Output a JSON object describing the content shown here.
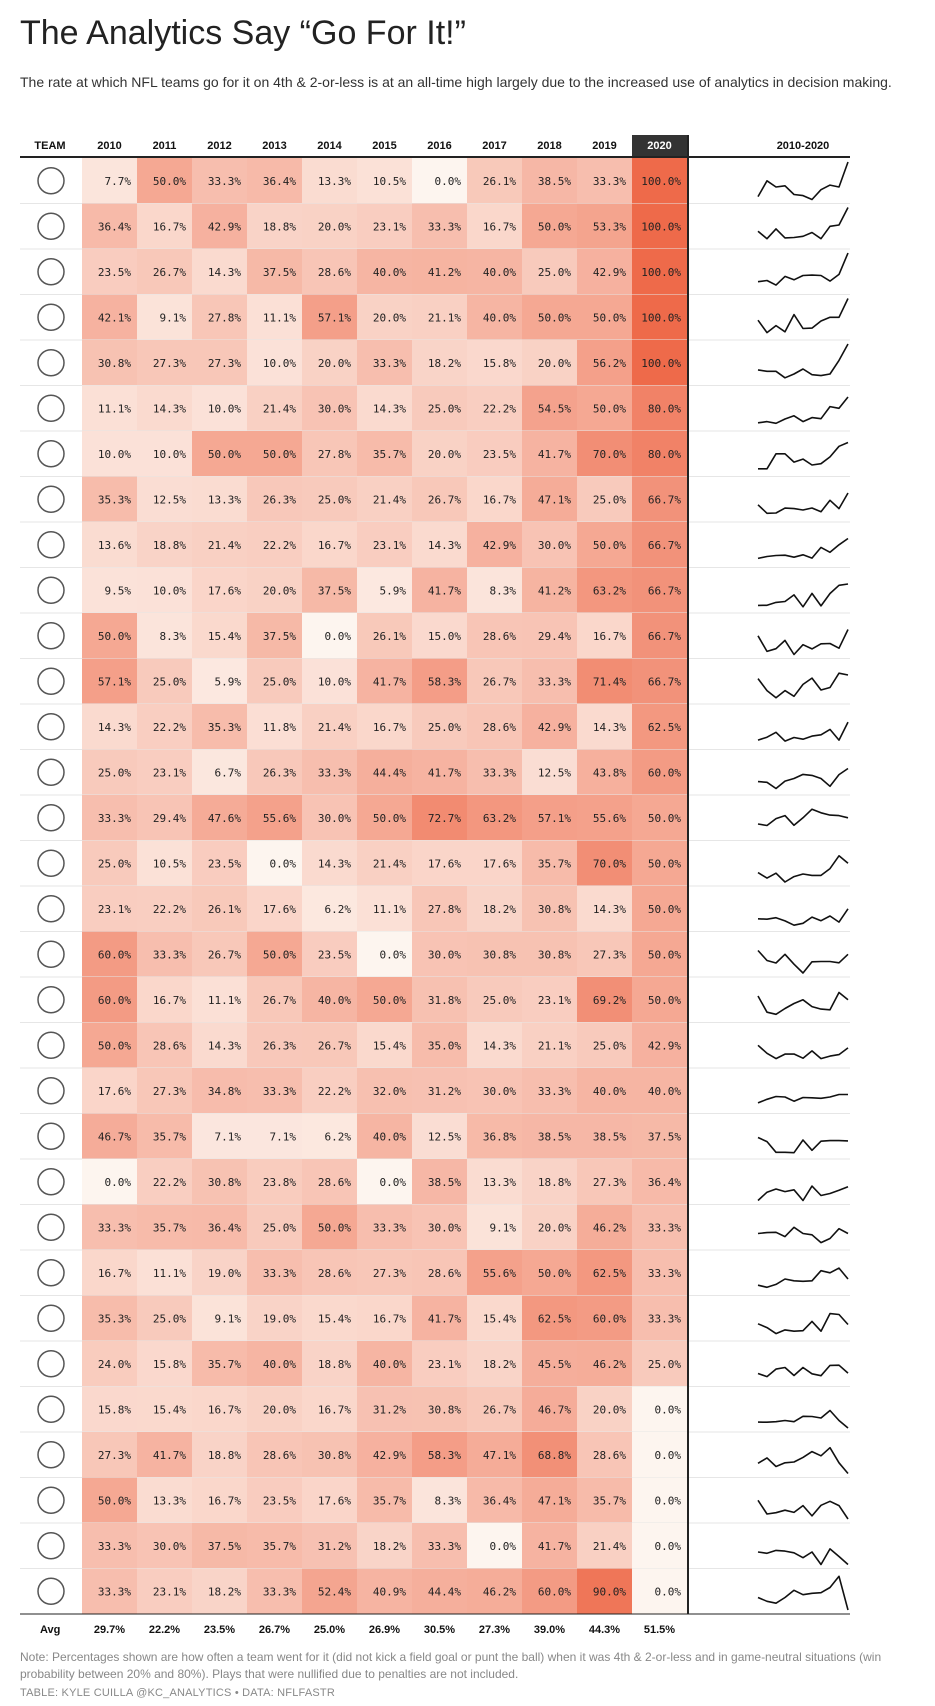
{
  "title": "The Analytics Say “Go For It!”",
  "subtitle": "The rate at which NFL teams go for it on 4th & 2-or-less is at an all-time high largely due to the increased use of analytics in decision making.",
  "note": "Note: Percentages shown are how often a team went for it (did not kick a field goal or punt the ball) when it was 4th & 2-or-less and in game-neutral situations (win probability between 20% and 80%). Plays that were nullified due to penalties are not included.",
  "credit": "TABLE: KYLE CUILLA @KC_ANALYTICS • DATA: NFLFASTR",
  "colors": {
    "low": "#fdf5ef",
    "high": "#ee6a4a",
    "highlight_header": "#333333",
    "spark": "#111111",
    "border": "#222222"
  },
  "chart_data": {
    "type": "table",
    "columns": [
      "TEAM",
      "2010",
      "2011",
      "2012",
      "2013",
      "2014",
      "2015",
      "2016",
      "2017",
      "2018",
      "2019",
      "2020",
      "2010-2020"
    ],
    "highlight_column": "2020",
    "sparkline_column": "2010-2020",
    "unit": "%",
    "value_range": [
      0,
      100
    ],
    "rows": [
      {
        "logo": "titans-logo",
        "values": [
          7.7,
          50.0,
          33.3,
          36.4,
          13.3,
          10.5,
          0.0,
          26.1,
          38.5,
          33.3,
          100.0
        ]
      },
      {
        "logo": "chiefs-logo",
        "values": [
          36.4,
          16.7,
          42.9,
          18.8,
          20.0,
          23.1,
          33.3,
          16.7,
          50.0,
          53.3,
          100.0
        ]
      },
      {
        "logo": "packers-logo",
        "values": [
          23.5,
          26.7,
          14.3,
          37.5,
          28.6,
          40.0,
          41.2,
          40.0,
          25.0,
          42.9,
          100.0
        ]
      },
      {
        "logo": "cowboys-logo",
        "values": [
          42.1,
          9.1,
          27.8,
          11.1,
          57.1,
          20.0,
          21.1,
          40.0,
          50.0,
          50.0,
          100.0
        ]
      },
      {
        "logo": "cardinals-logo",
        "values": [
          30.8,
          27.3,
          27.3,
          10.0,
          20.0,
          33.3,
          18.2,
          15.8,
          20.0,
          56.2,
          100.0
        ]
      },
      {
        "logo": "giants-logo",
        "values": [
          11.1,
          14.3,
          10.0,
          21.4,
          30.0,
          14.3,
          25.0,
          22.2,
          54.5,
          50.0,
          80.0
        ]
      },
      {
        "logo": "panthers-logo",
        "values": [
          10.0,
          10.0,
          50.0,
          50.0,
          27.8,
          35.7,
          20.0,
          23.5,
          41.7,
          70.0,
          80.0
        ]
      },
      {
        "logo": "vikings-logo",
        "values": [
          35.3,
          12.5,
          13.3,
          26.3,
          25.0,
          21.4,
          26.7,
          16.7,
          47.1,
          25.0,
          66.7
        ]
      },
      {
        "logo": "dolphins-logo",
        "values": [
          13.6,
          18.8,
          21.4,
          22.2,
          16.7,
          23.1,
          14.3,
          42.9,
          30.0,
          50.0,
          66.7
        ]
      },
      {
        "logo": "colts-logo",
        "values": [
          9.5,
          10.0,
          17.6,
          20.0,
          37.5,
          5.9,
          41.7,
          8.3,
          41.2,
          63.2,
          66.7
        ]
      },
      {
        "logo": "broncos-logo",
        "values": [
          50.0,
          8.3,
          15.4,
          37.5,
          0.0,
          26.1,
          15.0,
          28.6,
          29.4,
          16.7,
          66.7
        ]
      },
      {
        "logo": "falcons-logo",
        "values": [
          57.1,
          25.0,
          5.9,
          25.0,
          10.0,
          41.7,
          58.3,
          26.7,
          33.3,
          71.4,
          66.7
        ]
      },
      {
        "logo": "washington-logo",
        "values": [
          14.3,
          22.2,
          35.3,
          11.8,
          21.4,
          16.7,
          25.0,
          28.6,
          42.9,
          14.3,
          62.5
        ]
      },
      {
        "logo": "49ers-logo",
        "values": [
          25.0,
          23.1,
          6.7,
          26.3,
          33.3,
          44.4,
          41.7,
          33.3,
          12.5,
          43.8,
          60.0
        ]
      },
      {
        "logo": "eagles-logo",
        "values": [
          33.3,
          29.4,
          47.6,
          55.6,
          30.0,
          50.0,
          72.7,
          63.2,
          57.1,
          55.6,
          50.0
        ]
      },
      {
        "logo": "jets-logo",
        "values": [
          25.0,
          10.5,
          23.5,
          0.0,
          14.3,
          21.4,
          17.6,
          17.6,
          35.7,
          70.0,
          50.0
        ]
      },
      {
        "logo": "rams-logo",
        "values": [
          23.1,
          22.2,
          26.1,
          17.6,
          6.2,
          11.1,
          27.8,
          18.2,
          30.8,
          14.3,
          50.0
        ]
      },
      {
        "logo": "jaguars-logo",
        "values": [
          60.0,
          33.3,
          26.7,
          50.0,
          23.5,
          0.0,
          30.0,
          30.8,
          30.8,
          27.3,
          50.0
        ]
      },
      {
        "logo": "texans-logo",
        "values": [
          60.0,
          16.7,
          11.1,
          26.7,
          40.0,
          50.0,
          31.8,
          25.0,
          23.1,
          69.2,
          50.0
        ]
      },
      {
        "logo": "lions-logo",
        "values": [
          50.0,
          28.6,
          14.3,
          26.3,
          26.7,
          15.4,
          35.0,
          14.3,
          21.1,
          25.0,
          42.9
        ]
      },
      {
        "logo": "steelers-logo",
        "values": [
          17.6,
          27.3,
          34.8,
          33.3,
          22.2,
          32.0,
          31.2,
          30.0,
          33.3,
          40.0,
          40.0
        ]
      },
      {
        "logo": "raiders-logo",
        "values": [
          46.7,
          35.7,
          7.1,
          7.1,
          6.2,
          40.0,
          12.5,
          36.8,
          38.5,
          38.5,
          37.5
        ]
      },
      {
        "logo": "chargers-logo",
        "values": [
          0.0,
          22.2,
          30.8,
          23.8,
          28.6,
          0.0,
          38.5,
          13.3,
          18.8,
          27.3,
          36.4
        ]
      },
      {
        "logo": "buccaneers-logo",
        "values": [
          33.3,
          35.7,
          36.4,
          25.0,
          50.0,
          33.3,
          30.0,
          9.1,
          20.0,
          46.2,
          33.3
        ]
      },
      {
        "logo": "browns-logo",
        "values": [
          16.7,
          11.1,
          19.0,
          33.3,
          28.6,
          27.3,
          28.6,
          55.6,
          50.0,
          62.5,
          33.3
        ]
      },
      {
        "logo": "bills-logo",
        "values": [
          35.3,
          25.0,
          9.1,
          19.0,
          15.4,
          16.7,
          41.7,
          15.4,
          62.5,
          60.0,
          33.3
        ]
      },
      {
        "logo": "bengals-logo",
        "values": [
          24.0,
          15.8,
          35.7,
          40.0,
          18.8,
          40.0,
          23.1,
          18.2,
          45.5,
          46.2,
          25.0
        ]
      },
      {
        "logo": "seahawks-logo",
        "values": [
          15.8,
          15.4,
          16.7,
          20.0,
          16.7,
          31.2,
          30.8,
          26.7,
          46.7,
          20.0,
          0.0
        ]
      },
      {
        "logo": "saints-logo",
        "values": [
          27.3,
          41.7,
          18.8,
          28.6,
          30.8,
          42.9,
          58.3,
          47.1,
          68.8,
          28.6,
          0.0
        ]
      },
      {
        "logo": "patriots-logo",
        "values": [
          50.0,
          13.3,
          16.7,
          23.5,
          17.6,
          35.7,
          8.3,
          36.4,
          47.1,
          35.7,
          0.0
        ]
      },
      {
        "logo": "bears-logo",
        "values": [
          33.3,
          30.0,
          37.5,
          35.7,
          31.2,
          18.2,
          33.3,
          0.0,
          41.7,
          21.4,
          0.0
        ]
      },
      {
        "logo": "ravens-logo",
        "values": [
          33.3,
          23.1,
          18.2,
          33.3,
          52.4,
          40.9,
          44.4,
          46.2,
          60.0,
          90.0,
          0.0
        ]
      }
    ],
    "averages_label": "Avg",
    "averages": [
      29.7,
      22.2,
      23.5,
      26.7,
      25.0,
      26.9,
      30.5,
      27.3,
      39.0,
      44.3,
      51.5
    ]
  }
}
